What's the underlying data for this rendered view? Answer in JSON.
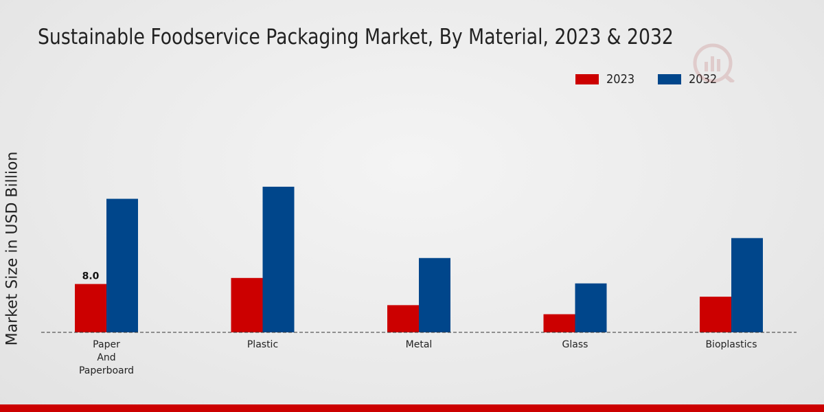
{
  "chart_data": {
    "type": "bar",
    "title": "Sustainable Foodservice Packaging Market, By Material, 2023 & 2032",
    "xlabel": "",
    "ylabel": "Market Size in USD Billion",
    "categories": [
      [
        "Paper",
        "And",
        "Paperboard"
      ],
      [
        "Plastic"
      ],
      [
        "Metal"
      ],
      [
        "Glass"
      ],
      [
        "Bioplastics"
      ]
    ],
    "series": [
      {
        "name": "2023",
        "color": "#cc0000",
        "values": [
          8.0,
          9.0,
          4.5,
          3.0,
          5.9
        ]
      },
      {
        "name": "2032",
        "color": "#00468b",
        "values": [
          22.1,
          24.1,
          12.3,
          8.1,
          15.6
        ]
      }
    ],
    "data_labels": [
      {
        "series": 0,
        "index": 0,
        "text": "8.0"
      }
    ],
    "ylim": [
      0,
      40
    ],
    "grid": false,
    "legend_position": "top-right"
  }
}
